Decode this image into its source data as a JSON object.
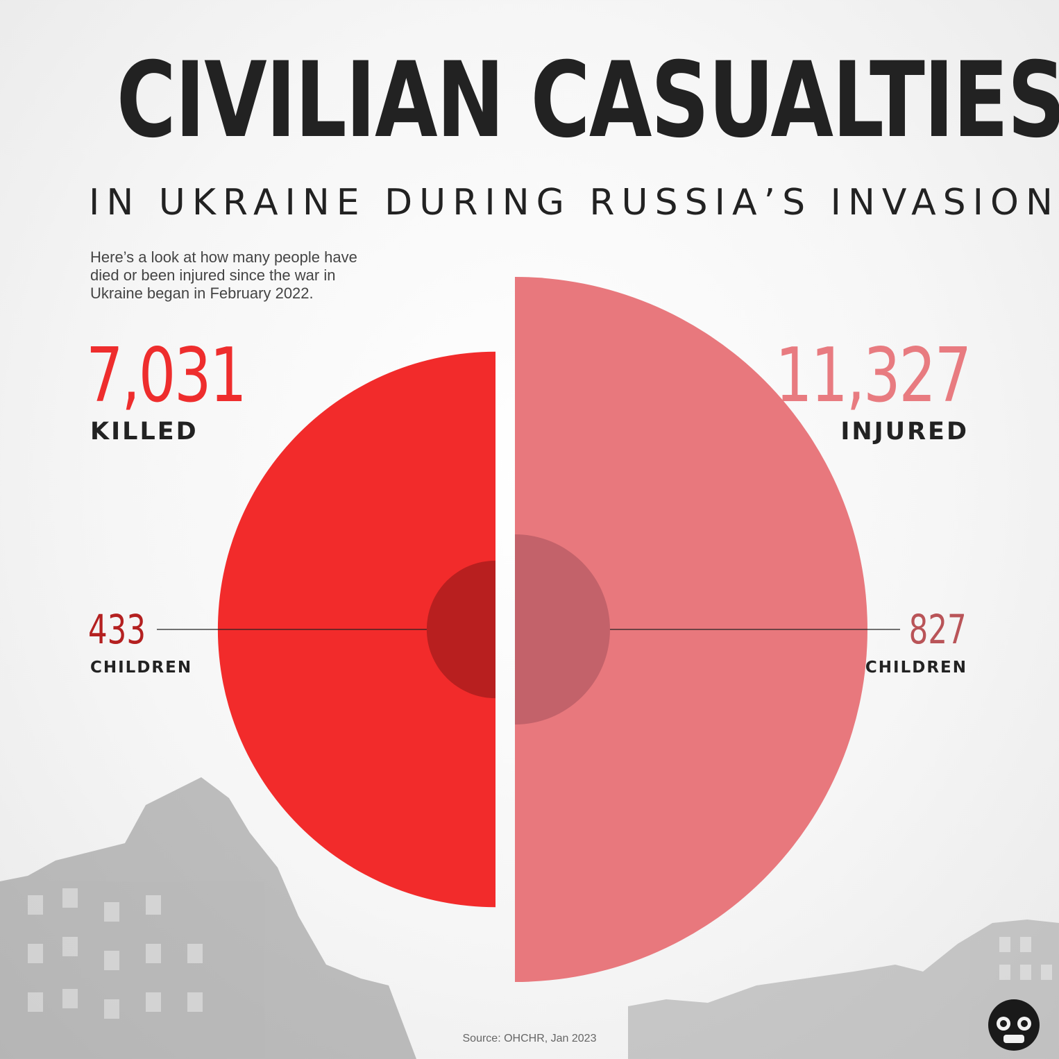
{
  "header": {
    "title": "CIVILIAN CASUALTIES",
    "subtitle": "IN UKRAINE DURING RUSSIA’S INVASION",
    "intro": "Here’s a look at how many people have died or been injured since the war in Ukraine began in February 2022."
  },
  "chart_data": {
    "type": "pie",
    "title": "CIVILIAN CASUALTIES",
    "series": [
      {
        "name": "KILLED",
        "value": 7031,
        "value_label": "7,031",
        "children": 433,
        "children_label": "433",
        "children_text": "CHILDREN",
        "color": "#f22b2b",
        "inner_color": "#b81f1f"
      },
      {
        "name": "INJURED",
        "value": 11327,
        "value_label": "11,327",
        "children": 827,
        "children_label": "827",
        "children_text": "CHILDREN",
        "color": "#e8787d",
        "inner_color": "#c3626a"
      }
    ]
  },
  "footer": {
    "source": "Source: OHCHR, Jan 2023"
  },
  "icons": {
    "logo": "binoculars-logo-icon",
    "buildings": "destroyed-building-illustration"
  }
}
